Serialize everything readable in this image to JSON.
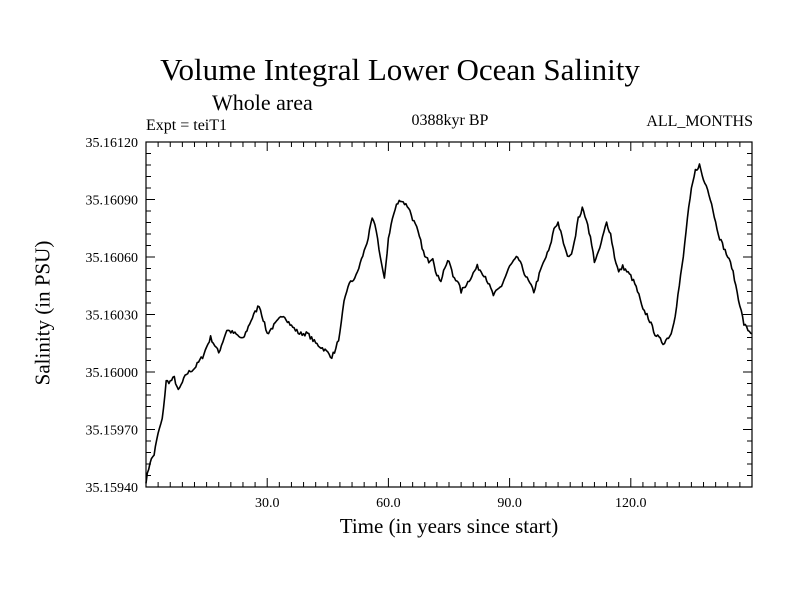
{
  "chart_data": {
    "type": "line",
    "title": "Volume Integral Lower Ocean Salinity",
    "subtitle": "Whole area",
    "header_left": "Expt = teiT1",
    "header_center": "0388kyr BP",
    "header_right": "ALL_MONTHS",
    "xlabel": "Time (in years since start)",
    "ylabel": "Salinity (in PSU)",
    "xlim": [
      0,
      150
    ],
    "ylim": [
      35.1594,
      35.1612
    ],
    "xticks": [
      30,
      60,
      90,
      120
    ],
    "xtick_labels": [
      "30.0",
      "60.0",
      "90.0",
      "120.0"
    ],
    "yticks": [
      35.1594,
      35.1597,
      35.16,
      35.1603,
      35.1606,
      35.1609,
      35.1612
    ],
    "ytick_labels": [
      "35.15940",
      "35.15970",
      "35.16000",
      "35.16030",
      "35.16060",
      "35.16090",
      "35.16120"
    ],
    "series": [
      {
        "name": "Salinity",
        "x": [
          0,
          1,
          2,
          3,
          4,
          5,
          6,
          7,
          8,
          10,
          12,
          14,
          16,
          18,
          20,
          22,
          24,
          26,
          28,
          30,
          32,
          34,
          36,
          38,
          40,
          42,
          44,
          46,
          47,
          48,
          49,
          50,
          52,
          54,
          55,
          56,
          57,
          58,
          59,
          60,
          61,
          62,
          63,
          64,
          65,
          66,
          67,
          68,
          69,
          70,
          71,
          72,
          73,
          74,
          75,
          76,
          77,
          78,
          80,
          82,
          84,
          86,
          88,
          90,
          92,
          94,
          96,
          98,
          100,
          101,
          102,
          103,
          104,
          105,
          106,
          107,
          108,
          109,
          110,
          111,
          112,
          113,
          114,
          115,
          116,
          117,
          118,
          120,
          121,
          122,
          123,
          124,
          126,
          128,
          130,
          131,
          132,
          133,
          134,
          135,
          136,
          137,
          138,
          139,
          140,
          141,
          142,
          143,
          144,
          145,
          146,
          147,
          148,
          149,
          150
        ],
        "values": [
          35.15943,
          35.15953,
          35.15957,
          35.15968,
          35.15975,
          35.15995,
          35.15995,
          35.15997,
          35.1599,
          35.15999,
          35.16002,
          35.16008,
          35.16018,
          35.1601,
          35.16022,
          35.1602,
          35.16017,
          35.16027,
          35.16035,
          35.1602,
          35.16025,
          35.1603,
          35.16024,
          35.1602,
          35.1602,
          35.16015,
          35.16012,
          35.16008,
          35.16012,
          35.1602,
          35.16036,
          35.16045,
          35.1605,
          35.16063,
          35.1607,
          35.1608,
          35.16074,
          35.1606,
          35.16048,
          35.1607,
          35.1608,
          35.16087,
          35.1609,
          35.16088,
          35.16086,
          35.1608,
          35.16075,
          35.16068,
          35.1606,
          35.16058,
          35.1606,
          35.1605,
          35.16048,
          35.16055,
          35.16058,
          35.1605,
          35.16048,
          35.16042,
          35.16048,
          35.16055,
          35.1605,
          35.1604,
          35.16045,
          35.16055,
          35.1606,
          35.1605,
          35.16042,
          35.16055,
          35.16065,
          35.16075,
          35.16078,
          35.1607,
          35.16062,
          35.1606,
          35.16068,
          35.1608,
          35.16085,
          35.1608,
          35.1607,
          35.16058,
          35.16062,
          35.1607,
          35.16078,
          35.16072,
          35.1606,
          35.16052,
          35.16055,
          35.1605,
          35.16046,
          35.1604,
          35.16032,
          35.1603,
          35.1602,
          35.16015,
          35.1602,
          35.1603,
          35.16045,
          35.1606,
          35.1608,
          35.16095,
          35.16105,
          35.16108,
          35.161,
          35.16096,
          35.16088,
          35.16078,
          35.1607,
          35.16065,
          35.1606,
          35.16055,
          35.16045,
          35.16035,
          35.16025,
          35.16022,
          35.1602
        ]
      }
    ]
  }
}
